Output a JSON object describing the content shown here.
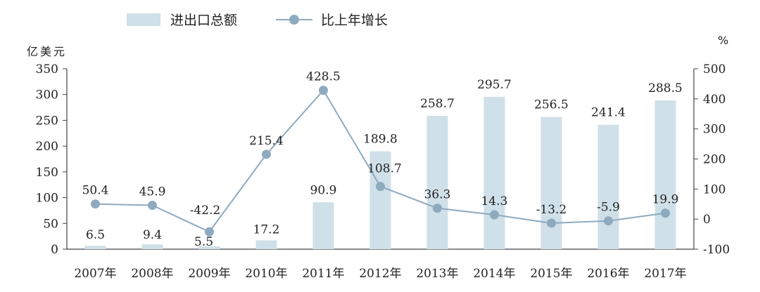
{
  "legend": {
    "bar_label": "进出口总额",
    "line_label": "比上年增长"
  },
  "units": {
    "left": "亿美元",
    "right": "%"
  },
  "colors": {
    "bar": "#cfe0e8",
    "line": "#8eaabf",
    "axis": "#444444",
    "text": "#222222"
  },
  "chart_data": {
    "type": "bar",
    "categories": [
      "2007年",
      "2008年",
      "2009年",
      "2010年",
      "2011年",
      "2012年",
      "2013年",
      "2014年",
      "2015年",
      "2016年",
      "2017年"
    ],
    "series": [
      {
        "name": "进出口总额",
        "type": "bar",
        "axis": "left",
        "values": [
          6.5,
          9.4,
          5.5,
          17.2,
          90.9,
          189.8,
          258.7,
          295.7,
          256.5,
          241.4,
          288.5
        ]
      },
      {
        "name": "比上年增长",
        "type": "line",
        "axis": "right",
        "values": [
          50.4,
          45.9,
          -42.2,
          215.4,
          428.5,
          108.7,
          36.3,
          14.3,
          -13.2,
          -5.9,
          19.9
        ]
      }
    ],
    "ylabel": "亿美元",
    "y2label": "%",
    "ylim": [
      0,
      350
    ],
    "y2lim": [
      -100,
      500
    ],
    "yticks": [
      0,
      50,
      100,
      150,
      200,
      250,
      300,
      350
    ],
    "y2ticks": [
      -100,
      0,
      100,
      200,
      300,
      400,
      500
    ],
    "grid": false,
    "legend_position": "top"
  }
}
